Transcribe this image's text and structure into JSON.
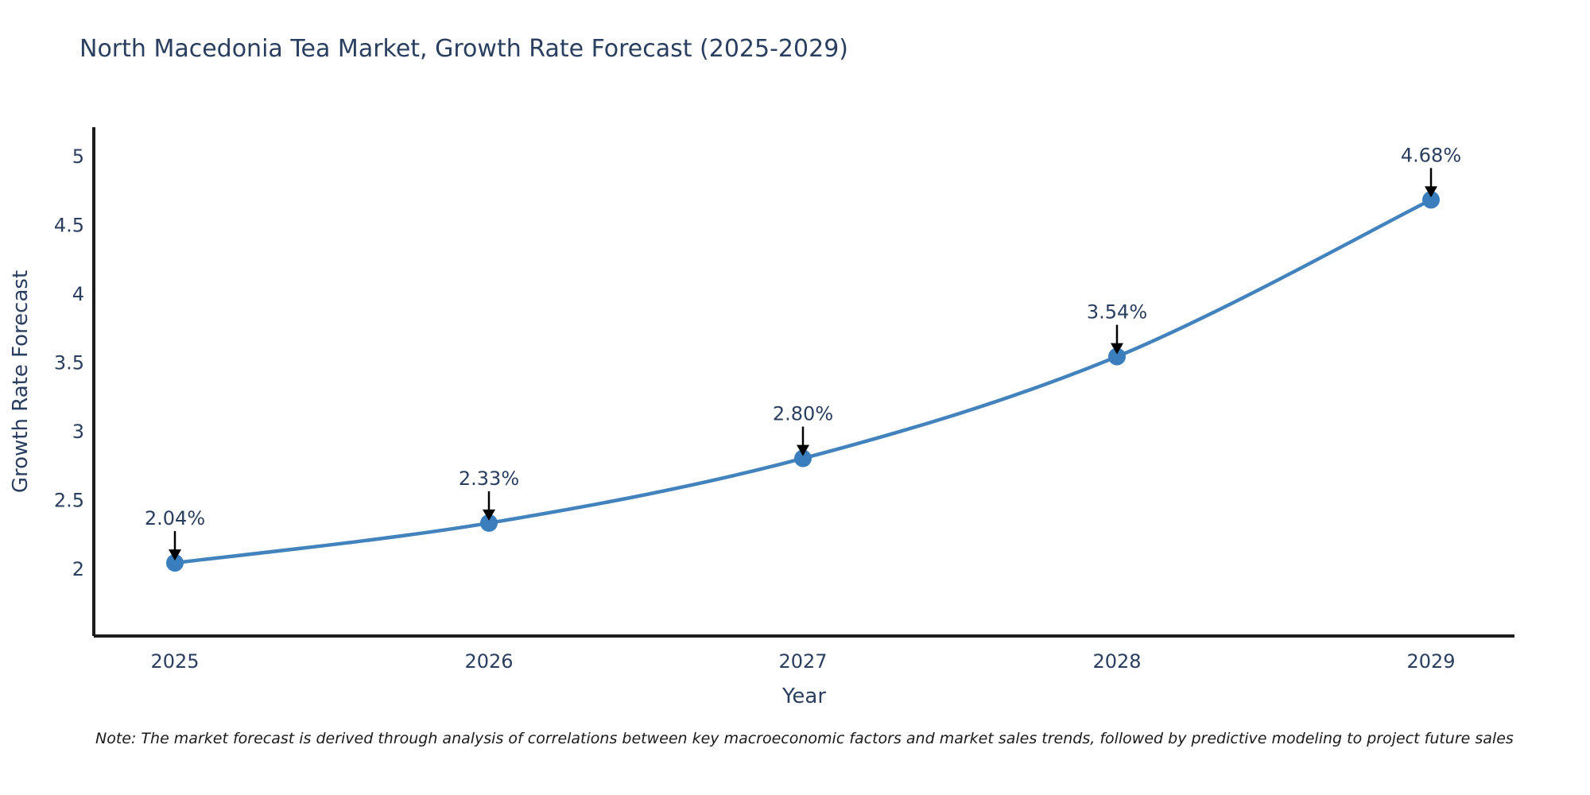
{
  "chart_data": {
    "type": "line",
    "title": "North Macedonia Tea Market, Growth Rate Forecast (2025-2029)",
    "xlabel": "Year",
    "ylabel": "Growth Rate Forecast",
    "categories": [
      "2025",
      "2026",
      "2027",
      "2028",
      "2029"
    ],
    "values": [
      2.04,
      2.33,
      2.8,
      3.54,
      4.68
    ],
    "point_labels": [
      "2.04%",
      "2.33%",
      "2.80%",
      "3.54%",
      "4.68%"
    ],
    "yticks": [
      5,
      4.5,
      4,
      3.5,
      3,
      2.5,
      2
    ],
    "ylim": [
      1.5,
      5.2
    ],
    "grid": false,
    "legend": "none",
    "line_color": "#4383bd",
    "marker_color": "#3a7ebd",
    "axis_color": "#1b1b1b",
    "label_color": "#2a3f5f",
    "arrow_color": "#000000"
  },
  "note": {
    "text": "Note: The market forecast is derived through analysis of correlations between key macroeconomic factors and market sales trends, followed by predictive modeling to project future sales"
  }
}
